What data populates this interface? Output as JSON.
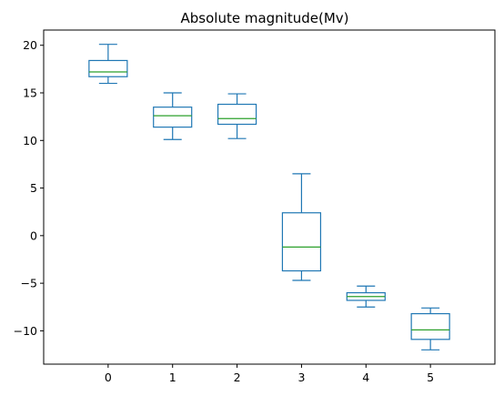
{
  "chart_data": {
    "type": "box",
    "title": "Absolute magnitude(Mv)",
    "xlabel": "",
    "ylabel": "",
    "categories": [
      "0",
      "1",
      "2",
      "3",
      "4",
      "5"
    ],
    "boxes": [
      {
        "label": "0",
        "whisker_low": 16.0,
        "q1": 16.7,
        "median": 17.2,
        "q3": 18.4,
        "whisker_high": 20.1
      },
      {
        "label": "1",
        "whisker_low": 10.1,
        "q1": 11.4,
        "median": 12.6,
        "q3": 13.5,
        "whisker_high": 15.0
      },
      {
        "label": "2",
        "whisker_low": 10.2,
        "q1": 11.7,
        "median": 12.3,
        "q3": 13.8,
        "whisker_high": 14.9
      },
      {
        "label": "3",
        "whisker_low": -4.7,
        "q1": -3.7,
        "median": -1.2,
        "q3": 2.4,
        "whisker_high": 6.5
      },
      {
        "label": "4",
        "whisker_low": -7.5,
        "q1": -6.8,
        "median": -6.4,
        "q3": -6.0,
        "whisker_high": -5.3
      },
      {
        "label": "5",
        "whisker_low": -12.0,
        "q1": -10.9,
        "median": -9.9,
        "q3": -8.2,
        "whisker_high": -7.6
      }
    ],
    "yticks": [
      20,
      15,
      10,
      5,
      0,
      -5,
      -10
    ],
    "ytick_labels": [
      "20",
      "15",
      "10",
      "5",
      "0",
      "−5",
      "−10"
    ],
    "ylim": [
      -13.5,
      21.6
    ],
    "grid": false,
    "legend": "none",
    "colors": {
      "box": "#1f77b4",
      "median": "#2ca02c",
      "axes": "#000000"
    }
  }
}
